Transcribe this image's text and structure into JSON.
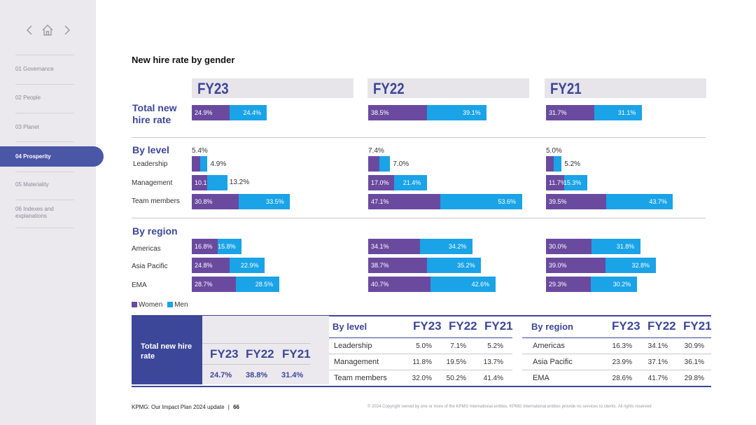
{
  "sidebar": {
    "items": [
      {
        "label": "01  Governance"
      },
      {
        "label": "02  People"
      },
      {
        "label": "03  Planet"
      },
      {
        "label": "04  Prosperity"
      },
      {
        "label": "05  Materiality"
      },
      {
        "label": "06  Indexes and explanations"
      }
    ],
    "active_index": 3
  },
  "colors": {
    "women": "#6a4a9e",
    "men": "#1aa3e6",
    "accent": "#3c4799"
  },
  "chart_data": {
    "type": "bar",
    "title": "New hire rate by gender",
    "legend": [
      "Women",
      "Men"
    ],
    "years": [
      "FY23",
      "FY22",
      "FY21"
    ],
    "sections": [
      {
        "name": "Total new hire rate",
        "rows": [
          {
            "label": "",
            "values": [
              [
                24.9,
                24.4
              ],
              [
                38.5,
                39.1
              ],
              [
                31.7,
                31.1
              ]
            ],
            "labels": [
              [
                "24.9%",
                "24.4%"
              ],
              [
                "38.5%",
                "39.1%"
              ],
              [
                "31.7%",
                "31.1%"
              ]
            ]
          }
        ]
      },
      {
        "name": "By level",
        "rows": [
          {
            "label": "Leadership",
            "values": [
              [
                5.4,
                4.9
              ],
              [
                7.4,
                7.0
              ],
              [
                5.0,
                5.2
              ]
            ],
            "labels": [
              [
                "5.4%",
                "4.9%"
              ],
              [
                "7.4%",
                "7.0%"
              ],
              [
                "5.0%",
                "5.2%"
              ]
            ]
          },
          {
            "label": "Management",
            "values": [
              [
                10.1,
                13.2
              ],
              [
                17.0,
                21.4
              ],
              [
                11.7,
                15.3
              ]
            ],
            "labels": [
              [
                "10.1%",
                "13.2%"
              ],
              [
                "17.0%",
                "21.4%"
              ],
              [
                "11.7%",
                "15.3%"
              ]
            ]
          },
          {
            "label": "Team members",
            "values": [
              [
                30.8,
                33.5
              ],
              [
                47.1,
                53.6
              ],
              [
                39.5,
                43.7
              ]
            ],
            "labels": [
              [
                "30.8%",
                "33.5%"
              ],
              [
                "47.1%",
                "53.6%"
              ],
              [
                "39.5%",
                "43.7%"
              ]
            ]
          }
        ]
      },
      {
        "name": "By region",
        "rows": [
          {
            "label": "Americas",
            "values": [
              [
                16.8,
                15.8
              ],
              [
                34.1,
                34.2
              ],
              [
                30.0,
                31.8
              ]
            ],
            "labels": [
              [
                "16.8%",
                "15.8%"
              ],
              [
                "34.1%",
                "34.2%"
              ],
              [
                "30.0%",
                "31.8%"
              ]
            ]
          },
          {
            "label": "Asia Pacific",
            "values": [
              [
                24.8,
                22.9
              ],
              [
                38.7,
                35.2
              ],
              [
                39.0,
                32.8
              ]
            ],
            "labels": [
              [
                "24.8%",
                "22.9%"
              ],
              [
                "38.7%",
                "35.2%"
              ],
              [
                "39.0%",
                "32.8%"
              ]
            ]
          },
          {
            "label": "EMA",
            "values": [
              [
                28.7,
                28.5
              ],
              [
                40.7,
                42.6
              ],
              [
                29.3,
                30.2
              ]
            ],
            "labels": [
              [
                "28.7%",
                "28.5%"
              ],
              [
                "40.7%",
                "42.6%"
              ],
              [
                "29.3%",
                "30.2%"
              ]
            ]
          }
        ]
      }
    ]
  },
  "summary": {
    "total_label": "Total new hire rate",
    "years": [
      "FY23",
      "FY22",
      "FY21"
    ],
    "total_values": [
      "24.7%",
      "38.8%",
      "31.4%"
    ],
    "by_level": {
      "title": "By level",
      "rows": [
        {
          "label": "Leadership",
          "values": [
            "5.0%",
            "7.1%",
            "5.2%"
          ]
        },
        {
          "label": "Management",
          "values": [
            "11.8%",
            "19.5%",
            "13.7%"
          ]
        },
        {
          "label": "Team members",
          "values": [
            "32.0%",
            "50.2%",
            "41.4%"
          ]
        }
      ]
    },
    "by_region": {
      "title": "By region",
      "rows": [
        {
          "label": "Americas",
          "values": [
            "16.3%",
            "34.1%",
            "30.9%"
          ]
        },
        {
          "label": "Asia Pacific",
          "values": [
            "23.9%",
            "37.1%",
            "36.1%"
          ]
        },
        {
          "label": "EMA",
          "values": [
            "28.6%",
            "41.7%",
            "29.8%"
          ]
        }
      ]
    }
  },
  "footer": {
    "title": "KPMG: Our Impact Plan 2024 update",
    "separator": "|",
    "page": "66",
    "copyright": "© 2024 Copyright owned by one or more of the KPMG International entities. KPMG International entities provide no services to clients. All rights reserved"
  }
}
